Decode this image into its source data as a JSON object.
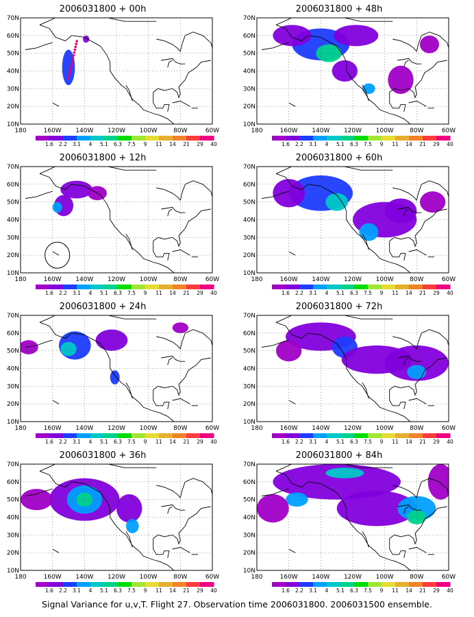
{
  "panels": [
    {
      "title": "2006031800 + 00h",
      "hour": 0
    },
    {
      "title": "2006031800 + 48h",
      "hour": 48
    },
    {
      "title": "2006031800 + 12h",
      "hour": 12
    },
    {
      "title": "2006031800 + 60h",
      "hour": 60
    },
    {
      "title": "2006031800 + 24h",
      "hour": 24
    },
    {
      "title": "2006031800 + 72h",
      "hour": 72
    },
    {
      "title": "2006031800 + 36h",
      "hour": 36
    },
    {
      "title": "2006031800 + 84h",
      "hour": 84
    }
  ],
  "lat_labels": [
    "70N",
    "60N",
    "50N",
    "40N",
    "30N",
    "20N",
    "10N"
  ],
  "lon_labels": [
    "180",
    "160W",
    "140W",
    "120W",
    "100W",
    "80W",
    "60W"
  ],
  "colorbar": {
    "labels": [
      "1.6",
      "2.2",
      "3.1",
      "4",
      "5.1",
      "6.3",
      "7.5",
      "9",
      "11",
      "14",
      "21",
      "29",
      "40"
    ],
    "colors": [
      "#a000c8",
      "#8200dc",
      "#1e3cff",
      "#00a0ff",
      "#00c8c8",
      "#00d28c",
      "#00dc00",
      "#a0e632",
      "#e6dc32",
      "#e6af2d",
      "#f08228",
      "#fa3c3c",
      "#f00082"
    ]
  },
  "caption": "Signal Variance for u,v,T. Flight 27. Observation time 2006031800. 2006031500 ensemble."
}
